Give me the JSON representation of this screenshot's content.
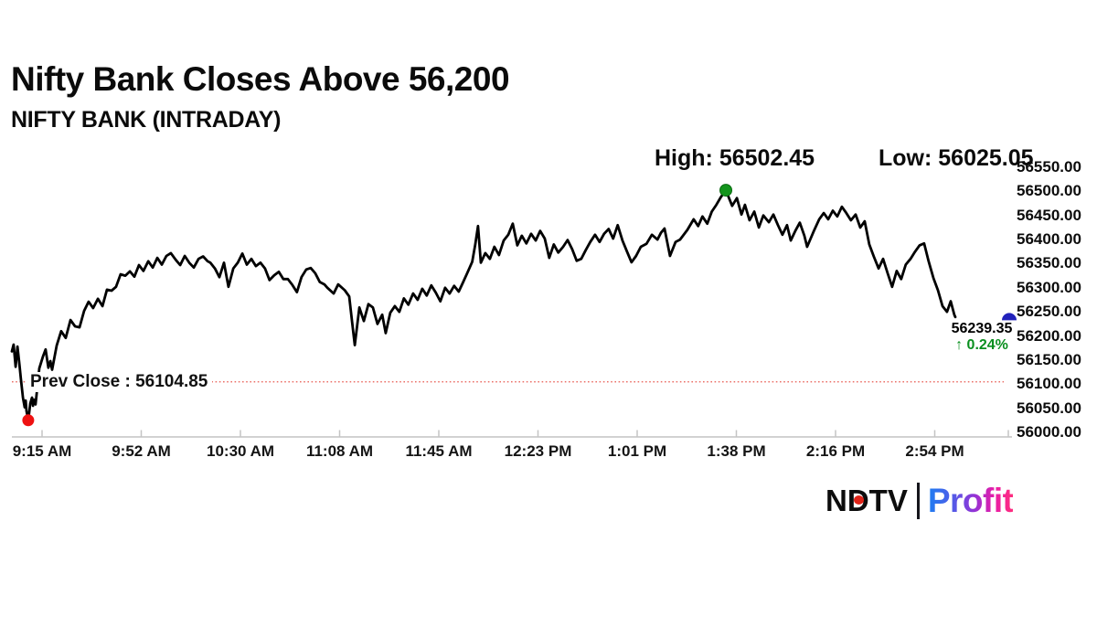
{
  "header": {
    "title": "Nifty Bank Closes Above 56,200",
    "subtitle": "NIFTY BANK (INTRADAY)"
  },
  "stats": {
    "high_text": "High: 56502.45",
    "low_text": "Low: 56025.05"
  },
  "footer": {
    "ndtv": "NDTV",
    "profit": "Profit"
  },
  "chart_data": {
    "type": "line",
    "title": "NIFTY BANK (INTRADAY)",
    "xlabel": "",
    "ylabel": "",
    "ylim": [
      56000,
      56550
    ],
    "grid": false,
    "x_ticks": [
      "9:15 AM",
      "9:52 AM",
      "10:30 AM",
      "11:08 AM",
      "11:45 AM",
      "12:23 PM",
      "1:01 PM",
      "1:38 PM",
      "2:16 PM",
      "2:54 PM"
    ],
    "y_ticks": [
      56550,
      56500,
      56450,
      56400,
      56350,
      56300,
      56250,
      56200,
      56150,
      56100,
      56050,
      56000
    ],
    "session_minutes": 375,
    "high": 56502.45,
    "low": 56025.05,
    "close": 56239.35,
    "prev_close": 56104.85,
    "prev_close_label": "Prev Close : 56104.85",
    "close_label": "56239.35",
    "change_label": "↑ 0.24%",
    "colors": {
      "line": "#000000",
      "high_marker": "#13941c",
      "low_marker": "#ee1111",
      "last_marker": "#2222bb",
      "prev_close_line": "#e8584e",
      "change_text": "#0a8f1f",
      "axis": "#c4c4c4"
    },
    "series": [
      {
        "name": "NIFTY BANK",
        "points": [
          [
            0,
            56168
          ],
          [
            0.7,
            56182
          ],
          [
            1.5,
            56136
          ],
          [
            2.2,
            56178
          ],
          [
            3,
            56140
          ],
          [
            3.6,
            56110
          ],
          [
            4.4,
            56072
          ],
          [
            5.1,
            56052
          ],
          [
            5.5,
            56066
          ],
          [
            5.8,
            56044
          ],
          [
            6.5,
            56025.05
          ],
          [
            7.3,
            56060
          ],
          [
            8,
            56072
          ],
          [
            8.4,
            56055
          ],
          [
            8.7,
            56068
          ],
          [
            9.4,
            56058
          ],
          [
            10.9,
            56133
          ],
          [
            12.4,
            56158
          ],
          [
            13.4,
            56172
          ],
          [
            14.5,
            56134
          ],
          [
            15.3,
            56148
          ],
          [
            16,
            56130
          ],
          [
            17.8,
            56180
          ],
          [
            19.6,
            56210
          ],
          [
            21.4,
            56196
          ],
          [
            23.3,
            56233
          ],
          [
            25.1,
            56220
          ],
          [
            26.9,
            56218
          ],
          [
            28.7,
            56252
          ],
          [
            30.5,
            56271
          ],
          [
            32.3,
            56258
          ],
          [
            34.2,
            56277
          ],
          [
            36,
            56262
          ],
          [
            37.8,
            56296
          ],
          [
            39.6,
            56294
          ],
          [
            41.4,
            56302
          ],
          [
            43.2,
            56328
          ],
          [
            45.1,
            56325
          ],
          [
            46.9,
            56334
          ],
          [
            48.7,
            56323
          ],
          [
            50.5,
            56347
          ],
          [
            52.3,
            56335
          ],
          [
            54.2,
            56355
          ],
          [
            56,
            56342
          ],
          [
            57.8,
            56362
          ],
          [
            59.6,
            56348
          ],
          [
            61.4,
            56366
          ],
          [
            63.2,
            56372
          ],
          [
            65.1,
            56358
          ],
          [
            66.9,
            56347
          ],
          [
            68.7,
            56366
          ],
          [
            70.5,
            56352
          ],
          [
            72.3,
            56342
          ],
          [
            74.2,
            56360
          ],
          [
            76,
            56365
          ],
          [
            77.8,
            56355
          ],
          [
            78.9,
            56352
          ],
          [
            80.7,
            56340
          ],
          [
            82.5,
            56322
          ],
          [
            84.3,
            56352
          ],
          [
            86.1,
            56302
          ],
          [
            88,
            56340
          ],
          [
            89.8,
            56352
          ],
          [
            91.6,
            56371
          ],
          [
            93.4,
            56348
          ],
          [
            95.2,
            56360
          ],
          [
            97,
            56345
          ],
          [
            98.8,
            56352
          ],
          [
            100.6,
            56340
          ],
          [
            102.4,
            56316
          ],
          [
            104.3,
            56326
          ],
          [
            106.1,
            56333
          ],
          [
            107.9,
            56318
          ],
          [
            109.7,
            56318
          ],
          [
            111.5,
            56306
          ],
          [
            113.3,
            56291
          ],
          [
            115.1,
            56322
          ],
          [
            117,
            56338
          ],
          [
            118.8,
            56341
          ],
          [
            120.6,
            56330
          ],
          [
            122.4,
            56312
          ],
          [
            124.2,
            56307
          ],
          [
            125.4,
            56300
          ],
          [
            127.9,
            56288
          ],
          [
            129.7,
            56307
          ],
          [
            132.3,
            56295
          ],
          [
            134.1,
            56282
          ],
          [
            135.2,
            56230
          ],
          [
            136.3,
            56181
          ],
          [
            138.1,
            56259
          ],
          [
            139.9,
            56231
          ],
          [
            141.7,
            56266
          ],
          [
            143.5,
            56259
          ],
          [
            145.3,
            56225
          ],
          [
            147.2,
            56244
          ],
          [
            148.6,
            56206
          ],
          [
            150.4,
            56248
          ],
          [
            152.2,
            56262
          ],
          [
            154,
            56250
          ],
          [
            155.8,
            56278
          ],
          [
            157.6,
            56265
          ],
          [
            159.5,
            56288
          ],
          [
            161.3,
            56275
          ],
          [
            163.1,
            56298
          ],
          [
            164.9,
            56284
          ],
          [
            166.7,
            56305
          ],
          [
            168.5,
            56290
          ],
          [
            170.3,
            56272
          ],
          [
            172.2,
            56300
          ],
          [
            174,
            56288
          ],
          [
            175.8,
            56304
          ],
          [
            177.6,
            56292
          ],
          [
            179.4,
            56312
          ],
          [
            181.2,
            56333
          ],
          [
            183,
            56354
          ],
          [
            184.2,
            56390
          ],
          [
            185.3,
            56428
          ],
          [
            186.4,
            56352
          ],
          [
            188.2,
            56372
          ],
          [
            190,
            56360
          ],
          [
            191.8,
            56385
          ],
          [
            193.6,
            56368
          ],
          [
            195.5,
            56398
          ],
          [
            197.3,
            56410
          ],
          [
            199.1,
            56433
          ],
          [
            200.9,
            56388
          ],
          [
            202.7,
            56408
          ],
          [
            204.5,
            56392
          ],
          [
            206.4,
            56412
          ],
          [
            208.2,
            56398
          ],
          [
            210,
            56418
          ],
          [
            211.8,
            56402
          ],
          [
            213.6,
            56362
          ],
          [
            215.4,
            56390
          ],
          [
            217.2,
            56373
          ],
          [
            219.1,
            56385
          ],
          [
            220.9,
            56399
          ],
          [
            222.7,
            56380
          ],
          [
            224.5,
            56356
          ],
          [
            226.3,
            56360
          ],
          [
            228.1,
            56378
          ],
          [
            229.9,
            56395
          ],
          [
            231.8,
            56410
          ],
          [
            233.6,
            56395
          ],
          [
            235.4,
            56412
          ],
          [
            237.2,
            56422
          ],
          [
            239,
            56402
          ],
          [
            240.8,
            56430
          ],
          [
            242.7,
            56398
          ],
          [
            244.5,
            56375
          ],
          [
            246.3,
            56353
          ],
          [
            248.1,
            56366
          ],
          [
            250,
            56385
          ],
          [
            252.2,
            56391
          ],
          [
            254.4,
            56410
          ],
          [
            256.6,
            56400
          ],
          [
            258,
            56414
          ],
          [
            259.4,
            56423
          ],
          [
            261.6,
            56366
          ],
          [
            263.8,
            56395
          ],
          [
            265.6,
            56400
          ],
          [
            268.5,
            56420
          ],
          [
            271,
            56442
          ],
          [
            272.8,
            56428
          ],
          [
            274.5,
            56448
          ],
          [
            276.4,
            56433
          ],
          [
            278.2,
            56458
          ],
          [
            280,
            56472
          ],
          [
            281.8,
            56488
          ],
          [
            283.8,
            56502.45
          ],
          [
            286.3,
            56470
          ],
          [
            288.2,
            56486
          ],
          [
            290,
            56452
          ],
          [
            291.4,
            56472
          ],
          [
            293.2,
            56440
          ],
          [
            295.1,
            56458
          ],
          [
            296.9,
            56425
          ],
          [
            298.7,
            56450
          ],
          [
            300.9,
            56436
          ],
          [
            302.7,
            56452
          ],
          [
            304.5,
            56430
          ],
          [
            306.3,
            56410
          ],
          [
            308.1,
            56430
          ],
          [
            309.6,
            56398
          ],
          [
            311.4,
            56418
          ],
          [
            313.2,
            56435
          ],
          [
            315,
            56408
          ],
          [
            316.1,
            56385
          ],
          [
            318.7,
            56417
          ],
          [
            320.9,
            56442
          ],
          [
            322.7,
            56455
          ],
          [
            324.5,
            56442
          ],
          [
            326.3,
            56460
          ],
          [
            328.1,
            56448
          ],
          [
            329.9,
            56468
          ],
          [
            331.7,
            56455
          ],
          [
            333.5,
            56440
          ],
          [
            335.4,
            56452
          ],
          [
            337.2,
            56425
          ],
          [
            339,
            56438
          ],
          [
            340.8,
            56390
          ],
          [
            342.6,
            56365
          ],
          [
            344.5,
            56340
          ],
          [
            346.3,
            56360
          ],
          [
            348.1,
            56330
          ],
          [
            349.9,
            56302
          ],
          [
            351.7,
            56335
          ],
          [
            353.5,
            56318
          ],
          [
            355.3,
            56348
          ],
          [
            357.2,
            56360
          ],
          [
            359,
            56375
          ],
          [
            360.8,
            56388
          ],
          [
            362.6,
            56392
          ],
          [
            364.4,
            56355
          ],
          [
            366.3,
            56320
          ],
          [
            368.1,
            56295
          ],
          [
            369.9,
            56262
          ],
          [
            371.7,
            56250
          ],
          [
            373.2,
            56272
          ],
          [
            374.6,
            56244
          ],
          [
            375,
            56239.35
          ]
        ]
      }
    ]
  }
}
